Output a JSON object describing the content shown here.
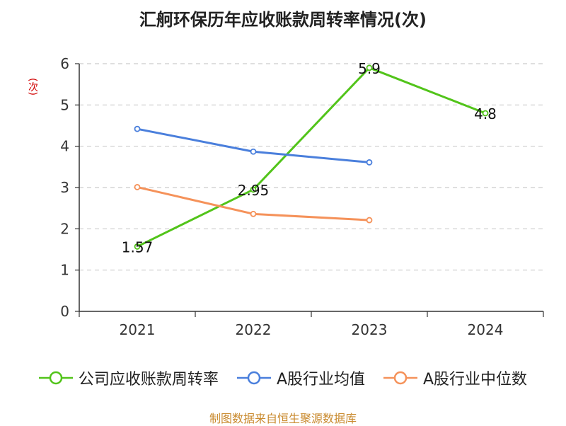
{
  "page": {
    "title": "汇舸环保历年应收账款周转率情况(次)",
    "source": "制图数据来自恒生聚源数据库",
    "colors": {
      "grid": "#cccccc",
      "axis": "#333333",
      "source": "#c98a2e",
      "ylabel": "#d00000"
    }
  },
  "chart_data": {
    "type": "line",
    "title": "汇舸环保历年应收账款周转率情况(次)",
    "ylabel": "(次)",
    "xlabel": "",
    "categories": [
      "2021",
      "2022",
      "2023",
      "2024"
    ],
    "ylim": [
      0,
      6
    ],
    "yticks": [
      0,
      1,
      2,
      3,
      4,
      5,
      6
    ],
    "grid": true,
    "legend_position": "bottom",
    "series": [
      {
        "name": "公司应收账款周转率",
        "color": "#52c41a",
        "values": [
          1.57,
          2.95,
          5.9,
          4.8
        ],
        "labels": [
          "1.57",
          "2.95",
          "5.9",
          "4.8"
        ]
      },
      {
        "name": "A股行业均值",
        "color": "#4a7fdc",
        "values": [
          4.42,
          3.87,
          3.61,
          null
        ],
        "labels": []
      },
      {
        "name": "A股行业中位数",
        "color": "#f5925a",
        "values": [
          3.01,
          2.36,
          2.21,
          null
        ],
        "labels": []
      }
    ]
  }
}
